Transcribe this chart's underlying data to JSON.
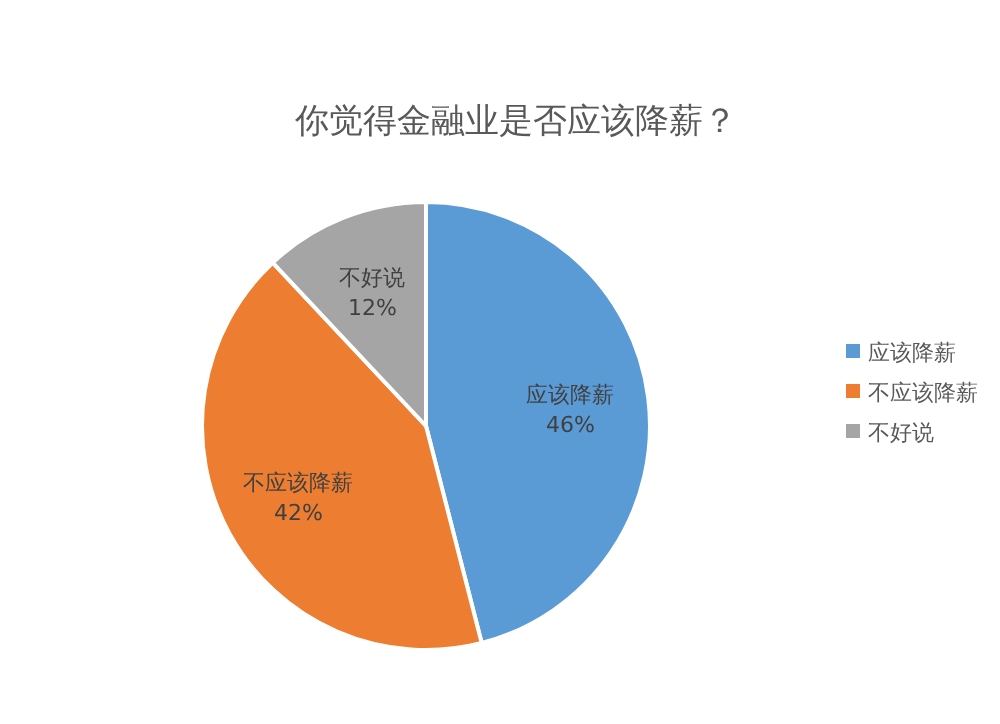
{
  "chart_data": {
    "type": "pie",
    "title": "你觉得金融业是否应该降薪？",
    "categories": [
      "应该降薪",
      "不应该降薪",
      "不好说"
    ],
    "values": [
      46,
      42,
      12
    ],
    "colors": [
      "#5b9bd5",
      "#ed7d31",
      "#a5a5a5"
    ],
    "value_labels": [
      "46%",
      "42%",
      "12%"
    ],
    "legend": "right"
  }
}
